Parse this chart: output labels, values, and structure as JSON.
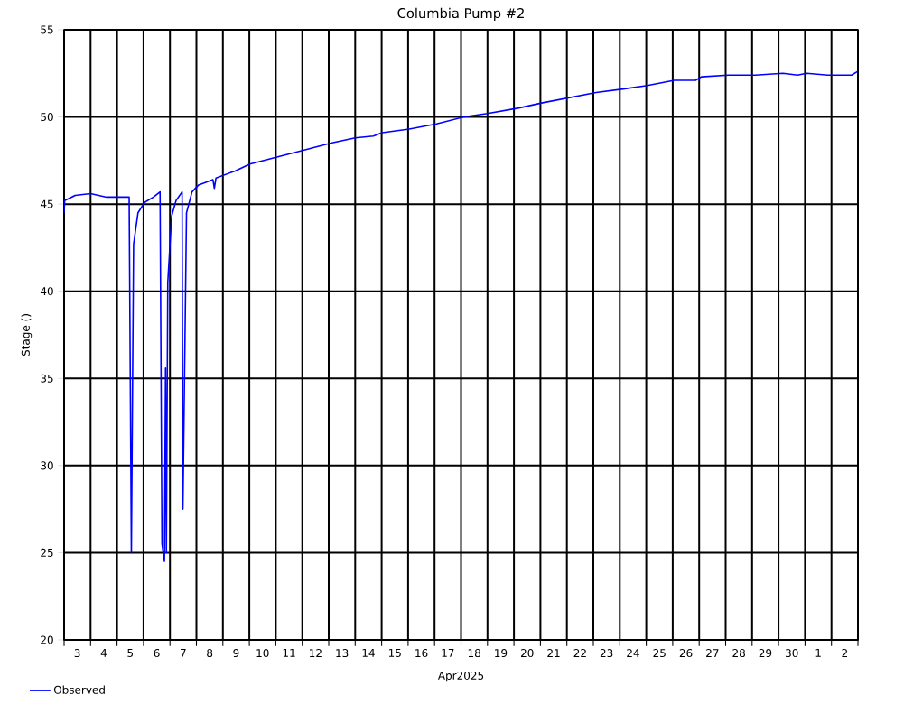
{
  "chart_data": {
    "type": "line",
    "title": "Columbia Pump #2",
    "xlabel": "Apr2025",
    "ylabel": "Stage ()",
    "x": [
      "2025-04-03T00:00",
      "2025-04-03T00:30",
      "2025-04-03T10:00",
      "2025-04-04T00:00",
      "2025-04-04T14:30",
      "2025-04-05T11:00",
      "2025-04-05T13:00",
      "2025-04-05T15:00",
      "2025-04-05T19:00",
      "2025-04-06T01:00",
      "2025-04-06T09:00",
      "2025-04-06T15:00",
      "2025-04-06T16:45",
      "2025-04-06T19:00",
      "2025-04-06T20:00",
      "2025-04-06T20:45",
      "2025-04-06T22:00",
      "2025-04-07T01:30",
      "2025-04-07T05:30",
      "2025-04-07T11:00",
      "2025-04-07T11:45",
      "2025-04-07T15:00",
      "2025-04-07T20:00",
      "2025-04-08T02:00",
      "2025-04-08T15:00",
      "2025-04-08T16:15",
      "2025-04-08T17:45",
      "2025-04-09T11:00",
      "2025-04-10T00:30",
      "2025-04-11T01:00",
      "2025-04-12T01:45",
      "2025-04-13T02:00",
      "2025-04-14T00:00",
      "2025-04-14T16:30",
      "2025-04-15T00:30",
      "2025-04-16T01:00",
      "2025-04-17T01:45",
      "2025-04-18T02:30",
      "2025-04-19T00:00",
      "2025-04-20T03:30",
      "2025-04-21T01:00",
      "2025-04-22T01:45",
      "2025-04-23T02:30",
      "2025-04-24T03:00",
      "2025-04-25T01:00",
      "2025-04-26T01:30",
      "2025-04-26T20:45",
      "2025-04-27T02:00",
      "2025-04-28T02:30",
      "2025-04-29T03:00",
      "2025-04-30T04:00",
      "2025-04-30T17:15",
      "2025-05-01T01:30",
      "2025-05-01T20:45",
      "2025-05-02T18:15",
      "2025-05-02T23:30"
    ],
    "series": [
      {
        "name": "Observed",
        "color": "#0000ff",
        "values": [
          44.5,
          45.2,
          45.5,
          45.6,
          45.4,
          45.4,
          25.0,
          42.7,
          44.5,
          45.1,
          45.4,
          45.7,
          25.5,
          24.5,
          35.6,
          25.0,
          40.5,
          44.3,
          45.2,
          45.7,
          27.5,
          44.5,
          45.7,
          46.1,
          46.4,
          45.9,
          46.5,
          46.9,
          47.3,
          47.7,
          48.1,
          48.5,
          48.8,
          48.9,
          49.1,
          49.3,
          49.6,
          50.0,
          50.2,
          50.5,
          50.8,
          51.1,
          51.4,
          51.6,
          51.8,
          52.1,
          52.1,
          52.3,
          52.4,
          52.4,
          52.5,
          52.4,
          52.5,
          52.4,
          52.4,
          52.6
        ]
      }
    ],
    "xlim": [
      "2025-04-03T00:00",
      "2025-05-03T00:00"
    ],
    "xticks": [
      {
        "value": "2025-04-03",
        "label": null
      },
      {
        "value": "2025-04-04",
        "label": null
      },
      {
        "value": "2025-04-05",
        "label": null
      },
      {
        "value": "2025-04-06",
        "label": null
      },
      {
        "value": "2025-04-07",
        "label": null
      },
      {
        "value": "2025-04-08",
        "label": null
      },
      {
        "value": "2025-04-09",
        "label": null
      },
      {
        "value": "2025-04-10",
        "label": null
      },
      {
        "value": "2025-04-11",
        "label": null
      },
      {
        "value": "2025-04-12",
        "label": null
      },
      {
        "value": "2025-04-13",
        "label": null
      },
      {
        "value": "2025-04-14",
        "label": null
      },
      {
        "value": "2025-04-15",
        "label": null
      },
      {
        "value": "2025-04-16",
        "label": null
      },
      {
        "value": "2025-04-17",
        "label": null
      },
      {
        "value": "2025-04-18",
        "label": null
      },
      {
        "value": "2025-04-19",
        "label": null
      },
      {
        "value": "2025-04-20",
        "label": null
      },
      {
        "value": "2025-04-21",
        "label": null
      },
      {
        "value": "2025-04-22",
        "label": null
      },
      {
        "value": "2025-04-23",
        "label": null
      },
      {
        "value": "2025-04-24",
        "label": null
      },
      {
        "value": "2025-04-25",
        "label": null
      },
      {
        "value": "2025-04-26",
        "label": null
      },
      {
        "value": "2025-04-27",
        "label": null
      },
      {
        "value": "2025-04-28",
        "label": null
      },
      {
        "value": "2025-04-29",
        "label": null
      },
      {
        "value": "2025-04-30",
        "label": null
      },
      {
        "value": "2025-05-01",
        "label": null
      },
      {
        "value": "2025-05-02",
        "label": null
      },
      {
        "value": "2025-05-03",
        "label": null
      },
      {
        "value": "2025-04-03T12:00",
        "label": "3"
      },
      {
        "value": "2025-04-04T12:00",
        "label": "4"
      },
      {
        "value": "2025-04-05T12:00",
        "label": "5"
      },
      {
        "value": "2025-04-06T12:00",
        "label": "6"
      },
      {
        "value": "2025-04-07T12:00",
        "label": "7"
      },
      {
        "value": "2025-04-08T12:00",
        "label": "8"
      },
      {
        "value": "2025-04-09T12:00",
        "label": "9"
      },
      {
        "value": "2025-04-10T12:00",
        "label": "10"
      },
      {
        "value": "2025-04-11T12:00",
        "label": "11"
      },
      {
        "value": "2025-04-12T12:00",
        "label": "12"
      },
      {
        "value": "2025-04-13T12:00",
        "label": "13"
      },
      {
        "value": "2025-04-14T12:00",
        "label": "14"
      },
      {
        "value": "2025-04-15T12:00",
        "label": "15"
      },
      {
        "value": "2025-04-16T12:00",
        "label": "16"
      },
      {
        "value": "2025-04-17T12:00",
        "label": "17"
      },
      {
        "value": "2025-04-18T12:00",
        "label": "18"
      },
      {
        "value": "2025-04-19T12:00",
        "label": "19"
      },
      {
        "value": "2025-04-20T12:00",
        "label": "20"
      },
      {
        "value": "2025-04-21T12:00",
        "label": "21"
      },
      {
        "value": "2025-04-22T12:00",
        "label": "22"
      },
      {
        "value": "2025-04-23T12:00",
        "label": "23"
      },
      {
        "value": "2025-04-24T12:00",
        "label": "24"
      },
      {
        "value": "2025-04-25T12:00",
        "label": "25"
      },
      {
        "value": "2025-04-26T12:00",
        "label": "26"
      },
      {
        "value": "2025-04-27T12:00",
        "label": "27"
      },
      {
        "value": "2025-04-28T12:00",
        "label": "28"
      },
      {
        "value": "2025-04-29T12:00",
        "label": "29"
      },
      {
        "value": "2025-04-30T12:00",
        "label": "30"
      },
      {
        "value": "2025-05-01T12:00",
        "label": "1"
      },
      {
        "value": "2025-05-02T12:00",
        "label": "2"
      }
    ],
    "ylim": [
      20,
      55
    ],
    "yticks": [
      20,
      25,
      30,
      35,
      40,
      45,
      50,
      55
    ],
    "grid": true,
    "legend": "bottom left",
    "marker": "none",
    "line_style": "solid"
  }
}
